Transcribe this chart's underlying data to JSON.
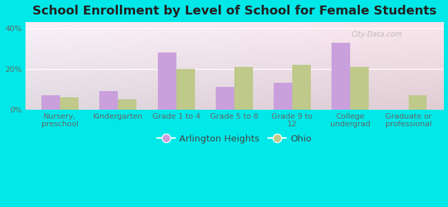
{
  "title": "School Enrollment by Level of School for Female Students",
  "categories": [
    "Nursery,\npreschool",
    "Kindergarten",
    "Grade 1 to 4",
    "Grade 5 to 8",
    "Grade 9 to\n12",
    "College\nundergrad",
    "Graduate or\nprofessional"
  ],
  "arlington_values": [
    7,
    9,
    28,
    11,
    13,
    33,
    0
  ],
  "ohio_values": [
    6,
    5,
    20,
    21,
    22,
    21,
    7
  ],
  "arlington_color": "#c9a0dc",
  "ohio_color": "#bec98a",
  "background_color": "#00e8e8",
  "ylabel_ticks": [
    "0%",
    "20%",
    "40%"
  ],
  "yticks": [
    0,
    20,
    40
  ],
  "ylim": [
    0,
    43
  ],
  "bar_width": 0.32,
  "legend_labels": [
    "Arlington Heights",
    "Ohio"
  ],
  "title_fontsize": 13,
  "tick_fontsize": 8,
  "legend_fontsize": 9.5,
  "watermark": "City-Data.com"
}
